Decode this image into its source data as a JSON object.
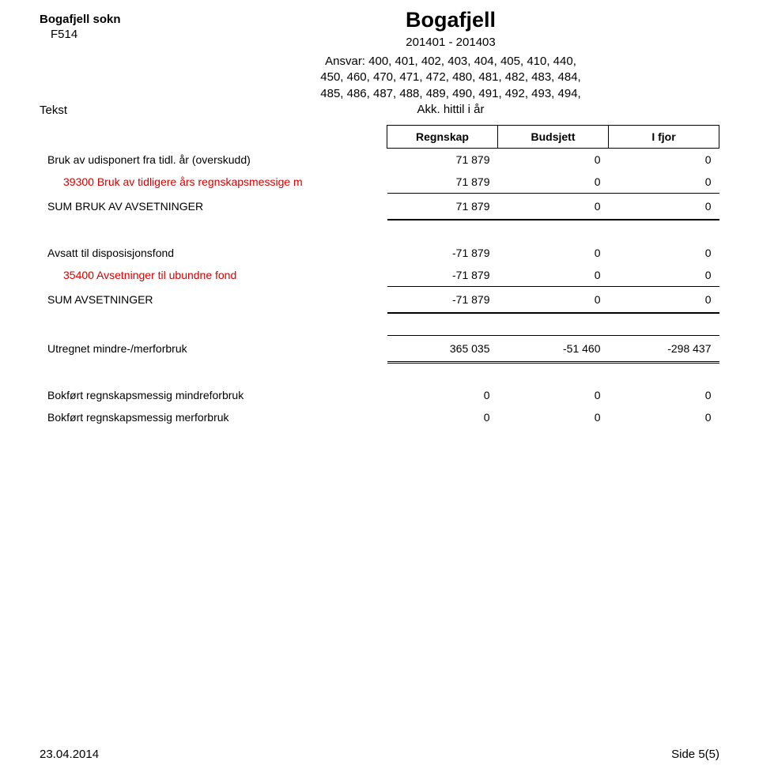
{
  "header": {
    "org_name": "Bogafjell sokn",
    "org_code": "F514",
    "title": "Bogafjell",
    "period": "201401 - 201403",
    "ansvar_line1": "Ansvar: 400, 401, 402, 403, 404, 405, 410, 440,",
    "ansvar_line2": "450, 460, 470, 471, 472, 480, 481, 482, 483, 484,",
    "ansvar_line3": "485, 486, 487, 488, 489, 490, 491, 492, 493, 494,",
    "tekst_label": "Tekst",
    "akk_label": "Akk. hittil i år"
  },
  "columns": {
    "regnskap": "Regnskap",
    "budsjett": "Budsjett",
    "ifjor": "I fjor"
  },
  "section1": {
    "row1": {
      "label": "Bruk av udisponert fra tidl. år (overskudd)",
      "c1": "71 879",
      "c2": "0",
      "c3": "0"
    },
    "row2": {
      "label": "39300 Bruk av tidligere års regnskapsmessige m",
      "c1": "71 879",
      "c2": "0",
      "c3": "0"
    },
    "sum": {
      "label": "SUM BRUK AV AVSETNINGER",
      "c1": "71 879",
      "c2": "0",
      "c3": "0"
    }
  },
  "section2": {
    "row1": {
      "label": "Avsatt til disposisjonsfond",
      "c1": "-71 879",
      "c2": "0",
      "c3": "0"
    },
    "row2": {
      "label": "35400 Avsetninger til ubundne fond",
      "c1": "-71 879",
      "c2": "0",
      "c3": "0"
    },
    "sum": {
      "label": "SUM AVSETNINGER",
      "c1": "-71 879",
      "c2": "0",
      "c3": "0"
    }
  },
  "section3": {
    "row1": {
      "label": "Utregnet mindre-/merforbruk",
      "c1": "365 035",
      "c2": "-51 460",
      "c3": "-298 437"
    }
  },
  "section4": {
    "row1": {
      "label": "Bokført regnskapsmessig mindreforbruk",
      "c1": "0",
      "c2": "0",
      "c3": "0"
    },
    "row2": {
      "label": "Bokført regnskapsmessig merforbruk",
      "c1": "0",
      "c2": "0",
      "c3": "0"
    }
  },
  "footer": {
    "date": "23.04.2014",
    "page": "Side 5(5)"
  },
  "colors": {
    "text": "#000000",
    "accent_red": "#d80000",
    "border": "#000000",
    "background": "#ffffff"
  }
}
